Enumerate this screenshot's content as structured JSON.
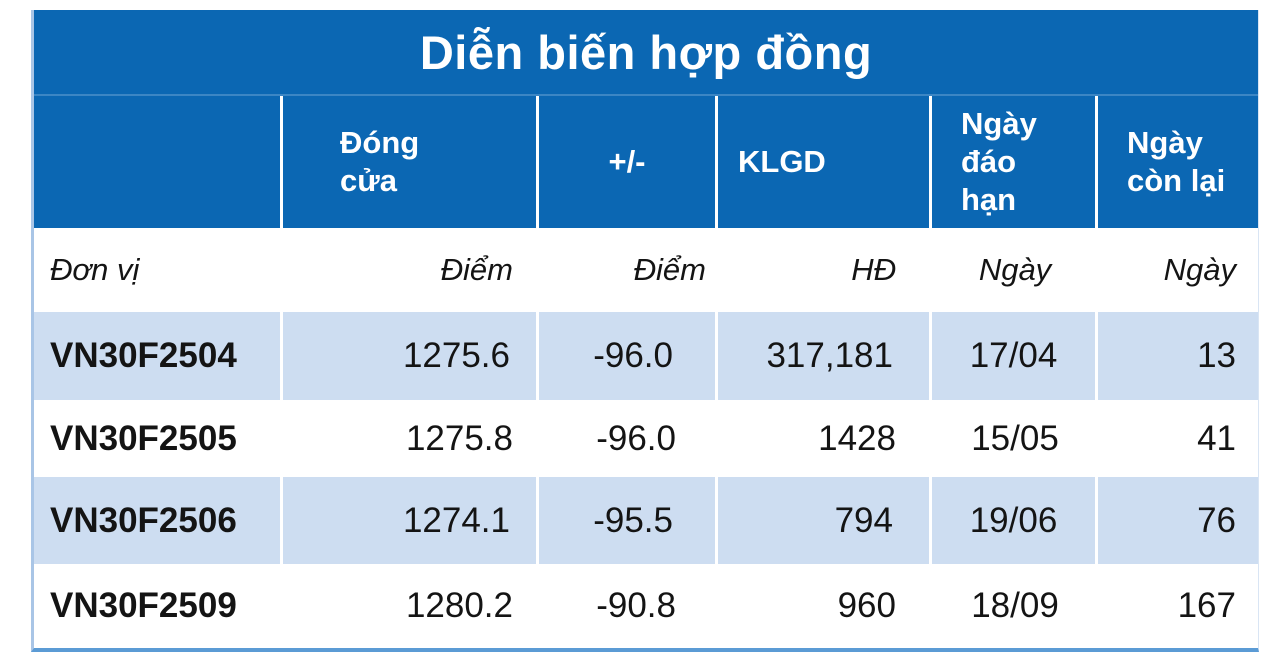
{
  "colors": {
    "header_blue": "#0b67b3",
    "stripe_blue": "#cdddf1",
    "bottom_border_blue": "#5b9bd5",
    "left_border_blue": "#a9c5e6",
    "header_text": "#ffffff",
    "body_text": "#141414"
  },
  "table": {
    "title": "Diễn biến hợp đồng",
    "headers": {
      "contract": "",
      "close": "Đóng cửa",
      "change": "+/-",
      "volume": "KLGD",
      "expiry": "Ngày đáo hạn",
      "days_left": "Ngày còn lại"
    },
    "units": {
      "contract": "Đơn vị",
      "close": "Điểm",
      "change": "Điểm",
      "volume": "HĐ",
      "expiry": "Ngày",
      "days_left": "Ngày"
    },
    "rows": [
      {
        "name": "VN30F2504",
        "close": "1275.6",
        "change": "-96.0",
        "volume": "317,181",
        "expiry": "17/04",
        "days_left": "13"
      },
      {
        "name": "VN30F2505",
        "close": "1275.8",
        "change": "-96.0",
        "volume": "1428",
        "expiry": "15/05",
        "days_left": "41"
      },
      {
        "name": "VN30F2506",
        "close": "1274.1",
        "change": "-95.5",
        "volume": "794",
        "expiry": "19/06",
        "days_left": "76"
      },
      {
        "name": "VN30F2509",
        "close": "1280.2",
        "change": "-90.8",
        "volume": "960",
        "expiry": "18/09",
        "days_left": "167"
      }
    ]
  },
  "chart_data": {
    "type": "table",
    "title": "Diễn biến hợp đồng",
    "columns": [
      "Đơn vị",
      "Đóng cửa (Điểm)",
      "+/- (Điểm)",
      "KLGD (HĐ)",
      "Ngày đáo hạn (Ngày)",
      "Ngày còn lại (Ngày)"
    ],
    "rows": [
      [
        "VN30F2504",
        1275.6,
        -96.0,
        317181,
        "17/04",
        13
      ],
      [
        "VN30F2505",
        1275.8,
        -96.0,
        1428,
        "15/05",
        41
      ],
      [
        "VN30F2506",
        1274.1,
        -95.5,
        794,
        "19/06",
        76
      ],
      [
        "VN30F2509",
        1280.2,
        -90.8,
        960,
        "18/09",
        167
      ]
    ]
  }
}
